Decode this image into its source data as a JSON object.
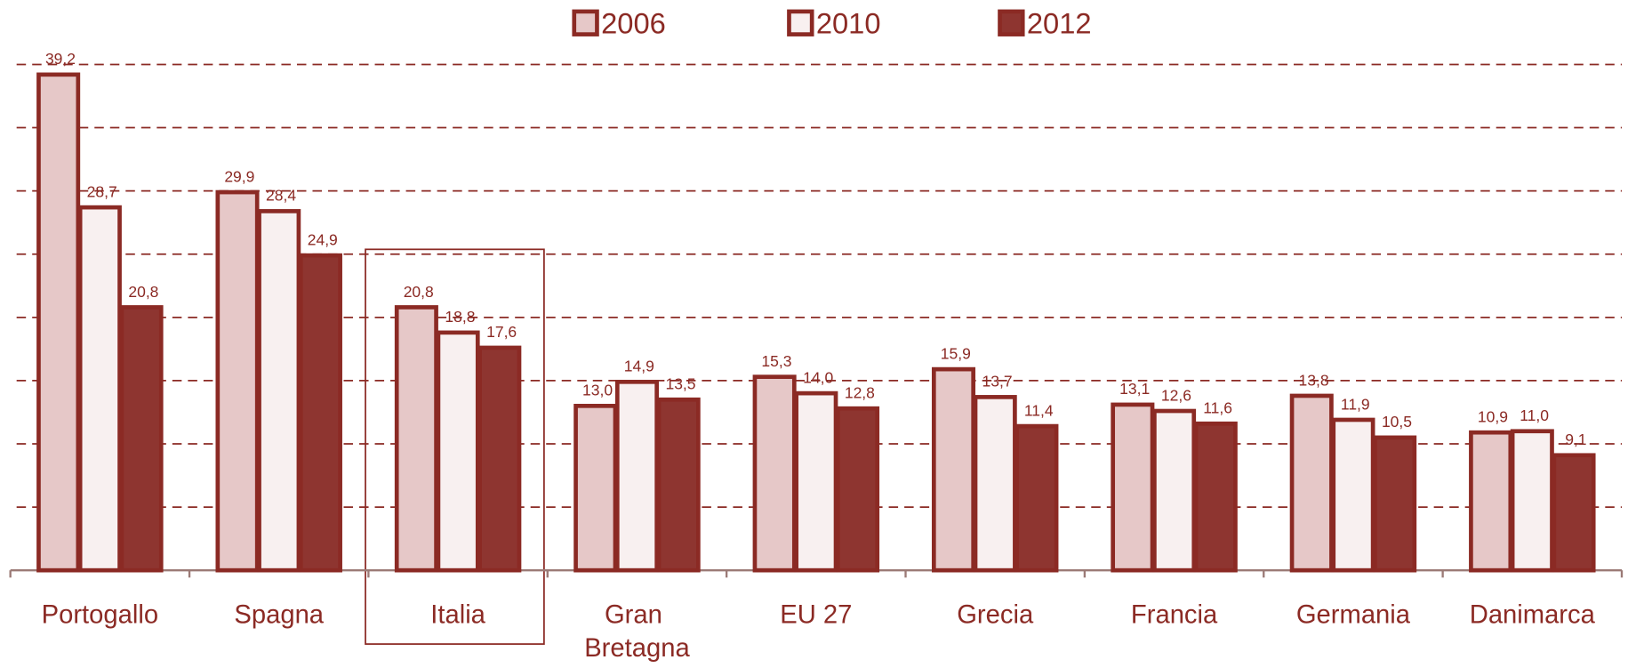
{
  "chart_data": {
    "type": "bar",
    "categories": [
      "Portogallo",
      "Spagna",
      "Italia",
      "Gran Bretagna",
      "EU 27",
      "Grecia",
      "Francia",
      "Germania",
      "Danimarca"
    ],
    "series": [
      {
        "name": "2006",
        "color": "#e6c8c8",
        "values": [
          39.2,
          29.9,
          20.8,
          13.0,
          15.3,
          15.9,
          13.1,
          13.8,
          10.9
        ],
        "value_labels": [
          "39,2",
          "29,9",
          "20,8",
          "13,0",
          "15,3",
          "15,9",
          "13,1",
          "13,8",
          "10,9"
        ]
      },
      {
        "name": "2010",
        "color": "#f8f0f0",
        "values": [
          28.7,
          28.4,
          18.8,
          14.9,
          14.0,
          13.7,
          12.6,
          11.9,
          11.0
        ],
        "value_labels": [
          "28,7",
          "28,4",
          "18,8",
          "14,9",
          "14,0",
          "13,7",
          "12,6",
          "11,9",
          "11,0"
        ]
      },
      {
        "name": "2012",
        "color": "#8e3530",
        "values": [
          20.8,
          24.9,
          17.6,
          13.5,
          12.8,
          11.4,
          11.6,
          10.5,
          9.1
        ],
        "value_labels": [
          "20,8",
          "24,9",
          "17,6",
          "13,5",
          "12,8",
          "11,4",
          "11,6",
          "10,5",
          "9,1"
        ]
      }
    ],
    "ylim": [
      0,
      40
    ],
    "yticks": [
      0,
      5,
      10,
      15,
      20,
      25,
      30,
      35,
      40
    ],
    "grid": true,
    "legend": "top"
  }
}
